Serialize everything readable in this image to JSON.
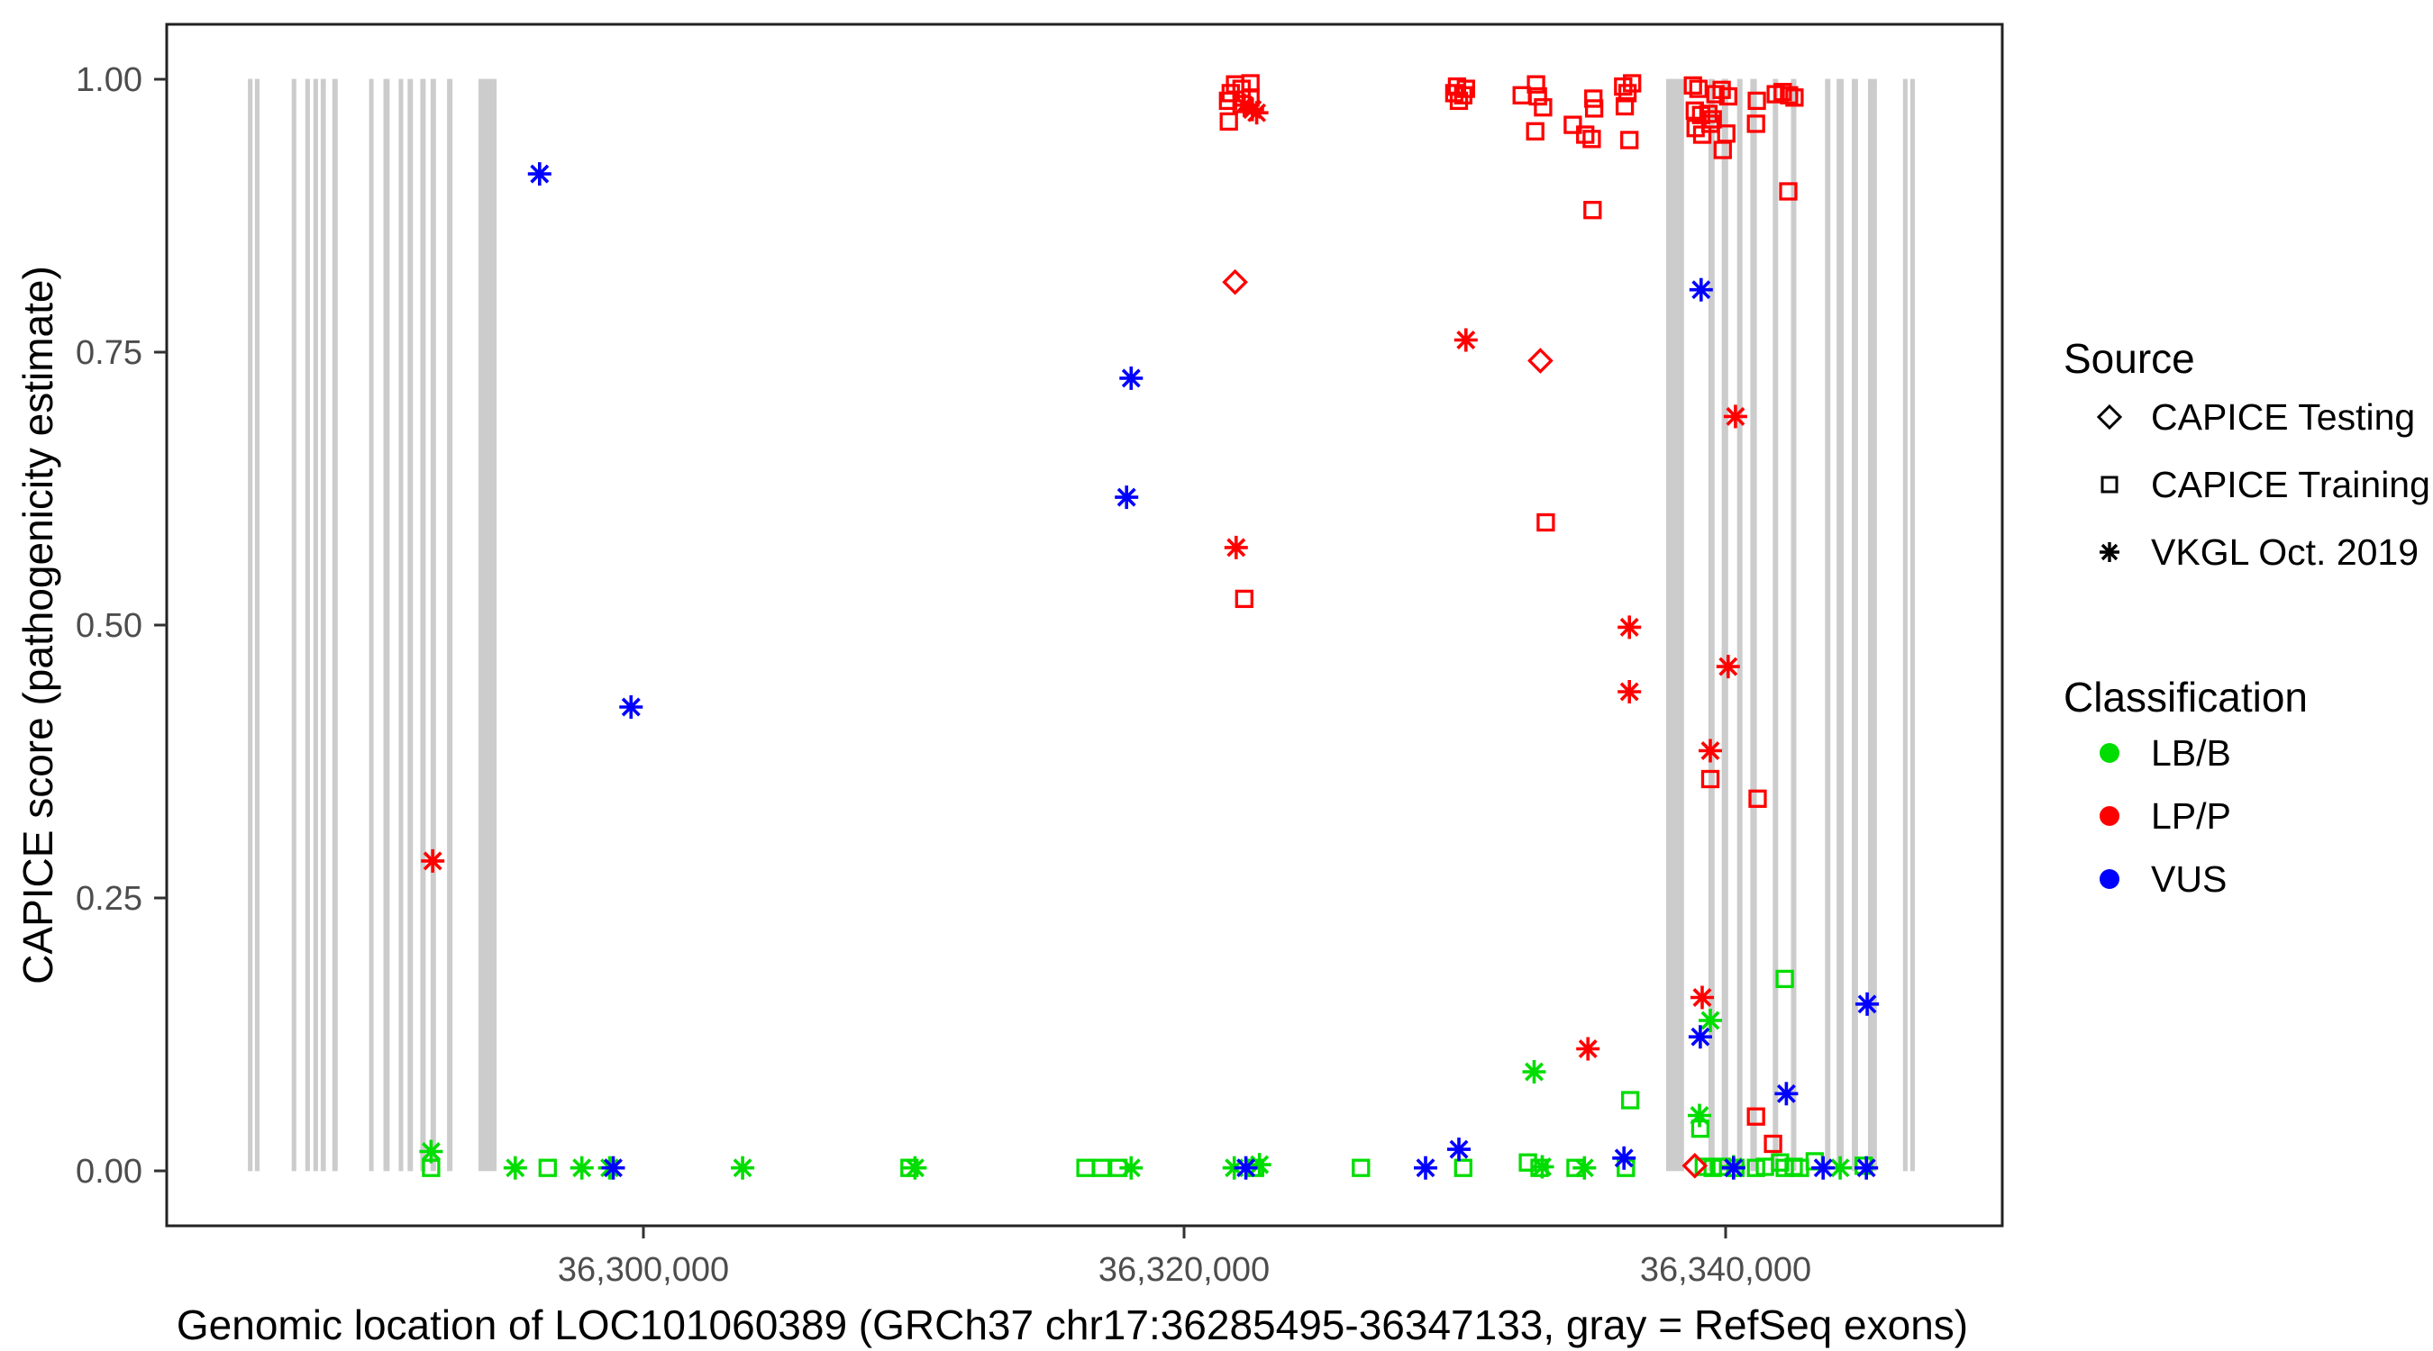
{
  "chart_data": {
    "type": "scatter",
    "title": "",
    "xlabel": "Genomic location of LOC101060389 (GRCh37 chr17:36285495-36347133, gray = RefSeq exons)",
    "ylabel": "CAPICE score (pathogenicity estimate)",
    "x_axis": {
      "range": [
        36282400,
        36350230
      ],
      "ticks": [
        {
          "value": 36300000,
          "label": "36,300,000"
        },
        {
          "value": 36320000,
          "label": "36,320,000"
        },
        {
          "value": 36340000,
          "label": "36,340,000"
        }
      ]
    },
    "y_axis": {
      "range": [
        -0.05,
        1.05
      ],
      "ticks": [
        {
          "value": 0.0,
          "label": "0.00"
        },
        {
          "value": 0.25,
          "label": "0.25"
        },
        {
          "value": 0.5,
          "label": "0.50"
        },
        {
          "value": 0.75,
          "label": "0.75"
        },
        {
          "value": 1.0,
          "label": "1.00"
        }
      ]
    },
    "exon_color": "#CCCCCC",
    "exons": [
      [
        36285400,
        36285570
      ],
      [
        36285660,
        36285830
      ],
      [
        36287020,
        36287190
      ],
      [
        36287520,
        36287690
      ],
      [
        36287820,
        36287990
      ],
      [
        36288090,
        36288280
      ],
      [
        36288520,
        36288720
      ],
      [
        36289880,
        36290040
      ],
      [
        36290410,
        36290640
      ],
      [
        36290970,
        36291140
      ],
      [
        36291300,
        36291500
      ],
      [
        36291770,
        36291970
      ],
      [
        36292150,
        36292350
      ],
      [
        36292760,
        36292960
      ],
      [
        36293920,
        36294590
      ],
      [
        36337810,
        36338470
      ],
      [
        36339370,
        36339600
      ],
      [
        36339860,
        36340100
      ],
      [
        36340430,
        36340630
      ],
      [
        36340920,
        36341160
      ],
      [
        36341750,
        36341950
      ],
      [
        36342420,
        36342620
      ],
      [
        36343680,
        36343880
      ],
      [
        36344110,
        36344370
      ],
      [
        36344670,
        36344900
      ],
      [
        36345270,
        36345600
      ],
      [
        36346560,
        36346730
      ],
      [
        36346830,
        36347000
      ]
    ],
    "class_colors": {
      "g": "#00DD00",
      "r": "#FF0000",
      "b": "#0000FF"
    },
    "class_names": {
      "g": "LB/B",
      "r": "LP/P",
      "b": "VUS"
    },
    "marker_names": {
      "sq": "CAPICE Training",
      "di": "CAPICE Testing",
      "as": "VKGL Oct. 2019"
    },
    "points": [
      [
        36292170,
        0.018,
        "as",
        "g"
      ],
      [
        36295280,
        0.003,
        "as",
        "g"
      ],
      [
        36297740,
        0.003,
        "as",
        "g"
      ],
      [
        36298770,
        0.003,
        "as",
        "g"
      ],
      [
        36303680,
        0.003,
        "as",
        "g"
      ],
      [
        36310050,
        0.003,
        "as",
        "g"
      ],
      [
        36318040,
        0.003,
        "as",
        "g"
      ],
      [
        36321850,
        0.003,
        "as",
        "g"
      ],
      [
        36322780,
        0.006,
        "as",
        "g"
      ],
      [
        36333230,
        0.004,
        "as",
        "g"
      ],
      [
        36334790,
        0.003,
        "as",
        "g"
      ],
      [
        36332930,
        0.091,
        "as",
        "g"
      ],
      [
        36339440,
        0.138,
        "as",
        "g"
      ],
      [
        36339040,
        0.051,
        "as",
        "g"
      ],
      [
        36340300,
        0.004,
        "as",
        "g"
      ],
      [
        36344240,
        0.003,
        "as",
        "g"
      ],
      [
        36292170,
        0.003,
        "sq",
        "g"
      ],
      [
        36296480,
        0.003,
        "sq",
        "g"
      ],
      [
        36309850,
        0.003,
        "sq",
        "g"
      ],
      [
        36316350,
        0.003,
        "sq",
        "g"
      ],
      [
        36316940,
        0.003,
        "sq",
        "g"
      ],
      [
        36317570,
        0.003,
        "sq",
        "g"
      ],
      [
        36322620,
        0.003,
        "sq",
        "g"
      ],
      [
        36326530,
        0.003,
        "sq",
        "g"
      ],
      [
        36330310,
        0.003,
        "sq",
        "g"
      ],
      [
        36332700,
        0.008,
        "sq",
        "g"
      ],
      [
        36333130,
        0.003,
        "sq",
        "g"
      ],
      [
        36334460,
        0.003,
        "sq",
        "g"
      ],
      [
        36336320,
        0.003,
        "sq",
        "g"
      ],
      [
        36336480,
        0.065,
        "sq",
        "g"
      ],
      [
        36342190,
        0.176,
        "sq",
        "g"
      ],
      [
        36339070,
        0.039,
        "sq",
        "g"
      ],
      [
        36339200,
        0.004,
        "sq",
        "g"
      ],
      [
        36339530,
        0.003,
        "sq",
        "g"
      ],
      [
        36339860,
        0.004,
        "sq",
        "g"
      ],
      [
        36340370,
        0.003,
        "sq",
        "g"
      ],
      [
        36341130,
        0.003,
        "sq",
        "g"
      ],
      [
        36341460,
        0.004,
        "sq",
        "g"
      ],
      [
        36342020,
        0.008,
        "sq",
        "g"
      ],
      [
        36342190,
        0.003,
        "sq",
        "g"
      ],
      [
        36342520,
        0.004,
        "sq",
        "g"
      ],
      [
        36342750,
        0.003,
        "sq",
        "g"
      ],
      [
        36343300,
        0.009,
        "sq",
        "g"
      ],
      [
        36345110,
        0.005,
        "sq",
        "g"
      ],
      [
        36321880,
        0.995,
        "sq",
        "r"
      ],
      [
        36322450,
        0.996,
        "sq",
        "r"
      ],
      [
        36322120,
        0.991,
        "sq",
        "r"
      ],
      [
        36321720,
        0.987,
        "sq",
        "r"
      ],
      [
        36322450,
        0.983,
        "sq",
        "r"
      ],
      [
        36321620,
        0.98,
        "sq",
        "r"
      ],
      [
        36322120,
        0.977,
        "sq",
        "r"
      ],
      [
        36321650,
        0.961,
        "sq",
        "r"
      ],
      [
        36330080,
        0.993,
        "sq",
        "r"
      ],
      [
        36330410,
        0.991,
        "sq",
        "r"
      ],
      [
        36329980,
        0.987,
        "sq",
        "r"
      ],
      [
        36330310,
        0.985,
        "sq",
        "r"
      ],
      [
        36330150,
        0.98,
        "sq",
        "r"
      ],
      [
        36333000,
        0.995,
        "sq",
        "r"
      ],
      [
        36332470,
        0.985,
        "sq",
        "r"
      ],
      [
        36333070,
        0.984,
        "sq",
        "r"
      ],
      [
        36333260,
        0.974,
        "sq",
        "r"
      ],
      [
        36332970,
        0.952,
        "sq",
        "r"
      ],
      [
        36334360,
        0.958,
        "sq",
        "r"
      ],
      [
        36334820,
        0.949,
        "sq",
        "r"
      ],
      [
        36335060,
        0.945,
        "sq",
        "r"
      ],
      [
        36335120,
        0.982,
        "sq",
        "r"
      ],
      [
        36335150,
        0.973,
        "sq",
        "r"
      ],
      [
        36336220,
        0.993,
        "sq",
        "r"
      ],
      [
        36336550,
        0.996,
        "sq",
        "r"
      ],
      [
        36336380,
        0.987,
        "sq",
        "r"
      ],
      [
        36336280,
        0.975,
        "sq",
        "r"
      ],
      [
        36336450,
        0.944,
        "sq",
        "r"
      ],
      [
        36335090,
        0.88,
        "sq",
        "r"
      ],
      [
        36338800,
        0.994,
        "sq",
        "r"
      ],
      [
        36339000,
        0.991,
        "sq",
        "r"
      ],
      [
        36339860,
        0.99,
        "sq",
        "r"
      ],
      [
        36339630,
        0.986,
        "sq",
        "r"
      ],
      [
        36340100,
        0.984,
        "sq",
        "r"
      ],
      [
        36338870,
        0.971,
        "sq",
        "r"
      ],
      [
        36339100,
        0.967,
        "sq",
        "r"
      ],
      [
        36339370,
        0.968,
        "sq",
        "r"
      ],
      [
        36339530,
        0.963,
        "sq",
        "r"
      ],
      [
        36339440,
        0.959,
        "sq",
        "r"
      ],
      [
        36338900,
        0.955,
        "sq",
        "r"
      ],
      [
        36339140,
        0.949,
        "sq",
        "r"
      ],
      [
        36339900,
        0.935,
        "sq",
        "r"
      ],
      [
        36340030,
        0.95,
        "sq",
        "r"
      ],
      [
        36341130,
        0.959,
        "sq",
        "r"
      ],
      [
        36341160,
        0.98,
        "sq",
        "r"
      ],
      [
        36341860,
        0.986,
        "sq",
        "r"
      ],
      [
        36342120,
        0.988,
        "sq",
        "r"
      ],
      [
        36342350,
        0.985,
        "sq",
        "r"
      ],
      [
        36342550,
        0.983,
        "sq",
        "r"
      ],
      [
        36342320,
        0.897,
        "sq",
        "r"
      ],
      [
        36333360,
        0.594,
        "sq",
        "r"
      ],
      [
        36322220,
        0.524,
        "sq",
        "r"
      ],
      [
        36339440,
        0.359,
        "sq",
        "r"
      ],
      [
        36341190,
        0.341,
        "sq",
        "r"
      ],
      [
        36341130,
        0.05,
        "sq",
        "r"
      ],
      [
        36341760,
        0.025,
        "sq",
        "r"
      ],
      [
        36322220,
        0.976,
        "as",
        "r"
      ],
      [
        36322520,
        0.972,
        "as",
        "r"
      ],
      [
        36322680,
        0.969,
        "as",
        "r"
      ],
      [
        36330410,
        0.761,
        "as",
        "r"
      ],
      [
        36340370,
        0.691,
        "as",
        "r"
      ],
      [
        36321920,
        0.571,
        "as",
        "r"
      ],
      [
        36336450,
        0.498,
        "as",
        "r"
      ],
      [
        36336450,
        0.439,
        "as",
        "r"
      ],
      [
        36340100,
        0.462,
        "as",
        "r"
      ],
      [
        36339440,
        0.385,
        "as",
        "r"
      ],
      [
        36292230,
        0.284,
        "as",
        "r"
      ],
      [
        36339140,
        0.159,
        "as",
        "r"
      ],
      [
        36334920,
        0.112,
        "as",
        "r"
      ],
      [
        36321880,
        0.814,
        "di",
        "r"
      ],
      [
        36333160,
        0.742,
        "di",
        "r"
      ],
      [
        36338870,
        0.005,
        "di",
        "r"
      ],
      [
        36296180,
        0.913,
        "as",
        "b"
      ],
      [
        36339100,
        0.807,
        "as",
        "b"
      ],
      [
        36318040,
        0.726,
        "as",
        "b"
      ],
      [
        36317870,
        0.617,
        "as",
        "b"
      ],
      [
        36299560,
        0.425,
        "as",
        "b"
      ],
      [
        36345240,
        0.153,
        "as",
        "b"
      ],
      [
        36339070,
        0.123,
        "as",
        "b"
      ],
      [
        36342250,
        0.071,
        "as",
        "b"
      ],
      [
        36330150,
        0.02,
        "as",
        "b"
      ],
      [
        36336250,
        0.012,
        "as",
        "b"
      ],
      [
        36298900,
        0.003,
        "as",
        "b"
      ],
      [
        36322280,
        0.003,
        "as",
        "b"
      ],
      [
        36328920,
        0.003,
        "as",
        "b"
      ],
      [
        36340300,
        0.003,
        "as",
        "b"
      ],
      [
        36343610,
        0.003,
        "as",
        "b"
      ],
      [
        36345210,
        0.003,
        "as",
        "b"
      ]
    ]
  },
  "legend": {
    "source": {
      "title": "Source",
      "items": [
        {
          "label": "CAPICE Testing",
          "marker": "diamond"
        },
        {
          "label": "CAPICE Training",
          "marker": "square"
        },
        {
          "label": "VKGL Oct. 2019",
          "marker": "asterisk"
        }
      ]
    },
    "classification": {
      "title": "Classification",
      "items": [
        {
          "label": "LB/B",
          "color": "#00DD00"
        },
        {
          "label": "LP/P",
          "color": "#FF0000"
        },
        {
          "label": "VUS",
          "color": "#0000FF"
        }
      ]
    }
  }
}
